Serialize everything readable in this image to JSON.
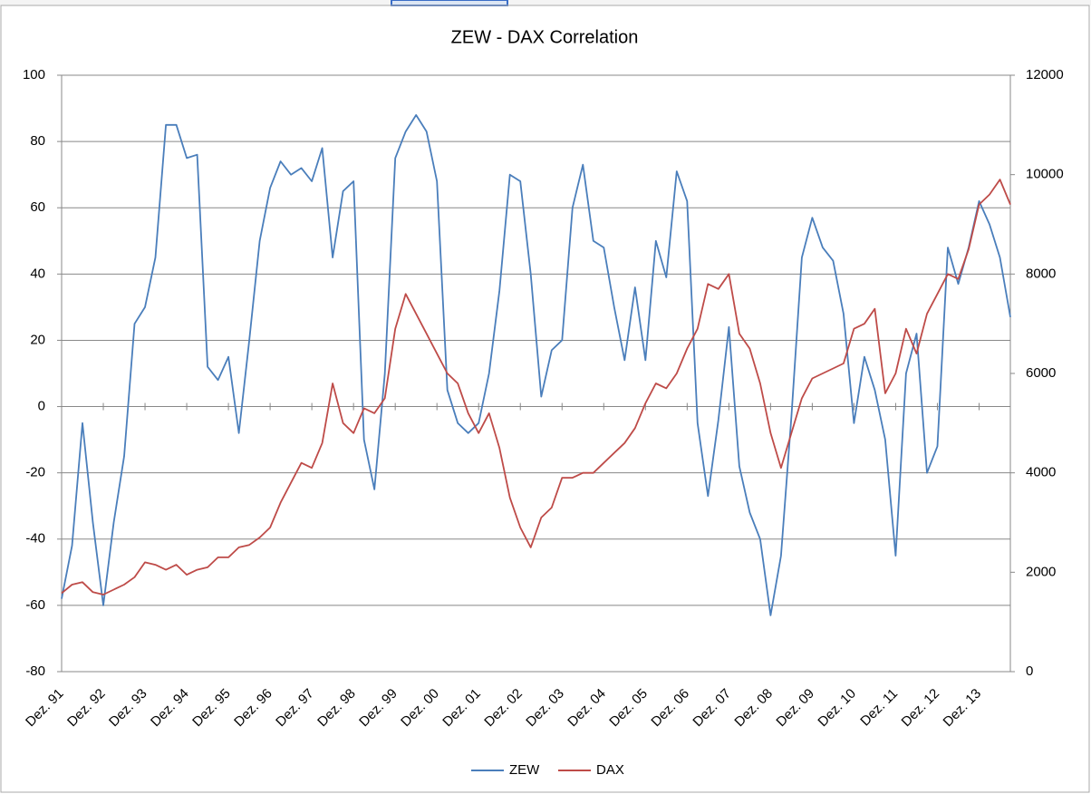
{
  "chart_data": {
    "type": "line",
    "title": "ZEW - DAX Correlation",
    "categories": [
      "Dez. 91",
      null,
      null,
      null,
      "Dez. 92",
      null,
      null,
      null,
      "Dez. 93",
      null,
      null,
      null,
      "Dez. 94",
      null,
      null,
      null,
      "Dez. 95",
      null,
      null,
      null,
      "Dez. 96",
      null,
      null,
      null,
      "Dez. 97",
      null,
      null,
      null,
      "Dez. 98",
      null,
      null,
      null,
      "Dez. 99",
      null,
      null,
      null,
      "Dez. 00",
      null,
      null,
      null,
      "Dez. 01",
      null,
      null,
      null,
      "Dez. 02",
      null,
      null,
      null,
      "Dez. 03",
      null,
      null,
      null,
      "Dez. 04",
      null,
      null,
      null,
      "Dez. 05",
      null,
      null,
      null,
      "Dez. 06",
      null,
      null,
      null,
      "Dez. 07",
      null,
      null,
      null,
      "Dez. 08",
      null,
      null,
      null,
      "Dez. 09",
      null,
      null,
      null,
      "Dez. 10",
      null,
      null,
      null,
      "Dez. 11",
      null,
      null,
      null,
      "Dez. 12",
      null,
      null,
      null,
      "Dez. 13",
      null,
      null,
      null
    ],
    "series": [
      {
        "name": "ZEW",
        "color": "#4a7ebb",
        "values": [
          -58,
          -42,
          -5,
          -35,
          -60,
          -35,
          -15,
          25,
          30,
          45,
          85,
          85,
          75,
          76,
          12,
          8,
          15,
          -8,
          20,
          50,
          66,
          74,
          70,
          72,
          68,
          78,
          45,
          65,
          68,
          -10,
          -25,
          10,
          75,
          83,
          88,
          83,
          68,
          5,
          -5,
          -8,
          -5,
          10,
          35,
          70,
          68,
          40,
          3,
          17,
          20,
          60,
          73,
          50,
          48,
          30,
          14,
          36,
          14,
          50,
          39,
          71,
          62,
          -5,
          -27,
          -4,
          24,
          -18,
          -32,
          -40,
          -63,
          -45,
          -3,
          45,
          57,
          48,
          44,
          28,
          -5,
          15,
          5,
          -10,
          -45,
          10,
          22,
          -20,
          -12,
          48,
          37,
          48,
          62,
          55,
          45,
          27
        ]
      },
      {
        "name": "DAX",
        "color": "#be4b48",
        "axis": "y2",
        "values": [
          1580,
          1750,
          1800,
          1600,
          1550,
          1650,
          1750,
          1900,
          2200,
          2150,
          2050,
          2150,
          1950,
          2050,
          2100,
          2300,
          2300,
          2500,
          2550,
          2700,
          2900,
          3400,
          3800,
          4200,
          4100,
          4600,
          5800,
          5000,
          4800,
          5300,
          5200,
          5500,
          6900,
          7600,
          7200,
          6800,
          6400,
          6000,
          5800,
          5200,
          4800,
          5200,
          4500,
          3500,
          2900,
          2500,
          3100,
          3300,
          3900,
          3900,
          4000,
          4000,
          4200,
          4400,
          4600,
          4900,
          5400,
          5800,
          5700,
          6000,
          6500,
          6900,
          7800,
          7700,
          8000,
          6800,
          6500,
          5800,
          4800,
          4100,
          4800,
          5500,
          5900,
          6000,
          6100,
          6200,
          6900,
          7000,
          7300,
          5600,
          6000,
          6900,
          6400,
          7200,
          7600,
          8000,
          7900,
          8500,
          9400,
          9600,
          9900,
          9400
        ]
      }
    ],
    "ylim": [
      -80,
      100
    ],
    "yticks": [
      -80,
      -60,
      -40,
      -20,
      0,
      20,
      40,
      60,
      80,
      100
    ],
    "y2lim": [
      0,
      12000
    ],
    "y2ticks": [
      0,
      2000,
      4000,
      6000,
      8000,
      10000,
      12000
    ],
    "grid": true,
    "legend": "bottom"
  }
}
